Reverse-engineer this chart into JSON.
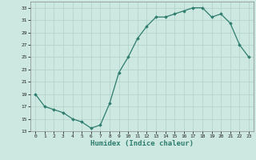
{
  "x": [
    0,
    1,
    2,
    3,
    4,
    5,
    6,
    7,
    8,
    9,
    10,
    11,
    12,
    13,
    14,
    15,
    16,
    17,
    18,
    19,
    20,
    21,
    22,
    23
  ],
  "y": [
    19,
    17,
    16.5,
    16,
    15,
    14.5,
    13.5,
    14,
    17.5,
    22.5,
    25,
    28,
    30,
    31.5,
    31.5,
    32,
    32.5,
    33,
    33,
    31.5,
    32,
    30.5,
    27,
    25
  ],
  "ylim": [
    13,
    34
  ],
  "yticks": [
    13,
    15,
    17,
    19,
    21,
    23,
    25,
    27,
    29,
    31,
    33
  ],
  "xticks": [
    0,
    1,
    2,
    3,
    4,
    5,
    6,
    7,
    8,
    9,
    10,
    11,
    12,
    13,
    14,
    15,
    16,
    17,
    18,
    19,
    20,
    21,
    22,
    23
  ],
  "xlabel": "Humidex (Indice chaleur)",
  "line_color": "#2e7d6e",
  "marker": "D",
  "marker_size": 1.8,
  "bg_color": "#cce8e0",
  "grid_color": "#b0d0c8",
  "axis_color": "#888888"
}
